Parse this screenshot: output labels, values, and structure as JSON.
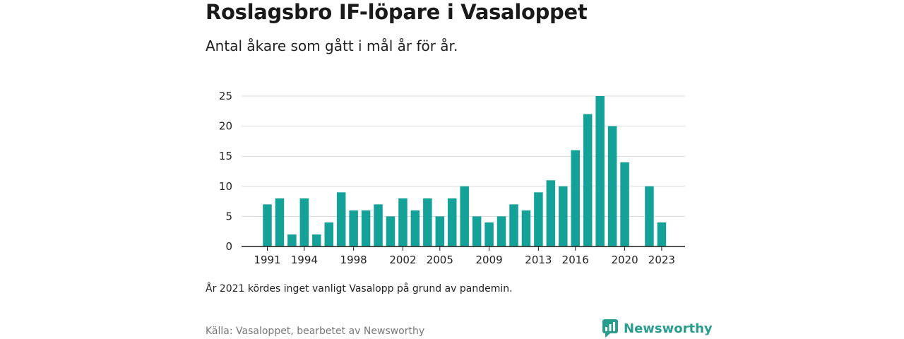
{
  "title": "Roslagsbro IF-löpare i Vasaloppet",
  "subtitle": "Antal åkare som gått i mål år för år.",
  "note": "År 2021 kördes inget vanligt Vasalopp på grund av pandemin.",
  "source": "Källa: Vasaloppet, bearbetet av Newsworthy",
  "brand": {
    "name": "Newsworthy",
    "icon": "newsworthy-logo-icon"
  },
  "colors": {
    "bar": "#14a298",
    "grid": "#d9d9d9",
    "axis": "#1a1a1a",
    "brand": "#2a9d8f"
  },
  "chart_data": {
    "type": "bar",
    "title": "",
    "xlabel": "",
    "ylabel": "",
    "categories": [
      "1991",
      "1992",
      "1993",
      "1994",
      "1995",
      "1996",
      "1997",
      "1998",
      "1999",
      "2000",
      "2001",
      "2002",
      "2003",
      "2004",
      "2005",
      "2006",
      "2007",
      "2008",
      "2009",
      "2010",
      "2011",
      "2012",
      "2013",
      "2014",
      "2015",
      "2016",
      "2017",
      "2018",
      "2019",
      "2020",
      "2021",
      "2022",
      "2023"
    ],
    "values": [
      7,
      8,
      2,
      8,
      2,
      4,
      9,
      6,
      6,
      7,
      5,
      8,
      6,
      8,
      5,
      8,
      10,
      5,
      4,
      5,
      7,
      6,
      9,
      11,
      10,
      16,
      22,
      25,
      20,
      14,
      null,
      10,
      4
    ],
    "x_tick_labels": [
      "1991",
      "1994",
      "1998",
      "2002",
      "2005",
      "2009",
      "2013",
      "2016",
      "2020",
      "2023"
    ],
    "y_ticks": [
      0,
      5,
      10,
      15,
      20,
      25
    ],
    "ylim": [
      0,
      25
    ],
    "grid": true,
    "legend": "none"
  }
}
